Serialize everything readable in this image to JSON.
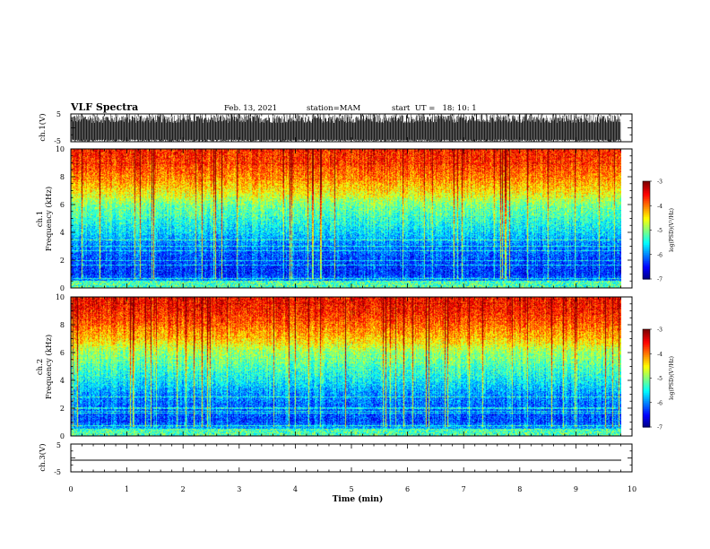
{
  "header": {
    "title": "VLF Spectra",
    "date": "Feb. 13, 2021",
    "station": "station=MAM",
    "start": "start  UT =   18: 10: 1"
  },
  "chart_data": [
    {
      "type": "line",
      "panel": "ch1-waveform",
      "ylabel": "ch.1(V)",
      "ylim": [
        -5,
        5
      ],
      "y_ticks": [
        5,
        -5
      ],
      "xlim": [
        0,
        10
      ],
      "data_extent_x": [
        0,
        9.8
      ],
      "description_values": {
        "baseline": -5,
        "burst_count_per_min": 30,
        "burst_peak": 5
      }
    },
    {
      "type": "heatmap",
      "panel": "ch1-spectrogram",
      "ylabel": "ch.1\nFrequency (kHz)",
      "ylim": [
        0,
        10
      ],
      "y_ticks": [
        0,
        2,
        4,
        6,
        8,
        10
      ],
      "xlim": [
        0,
        10
      ],
      "data_extent_x": [
        0,
        9.8
      ],
      "colorbar": {
        "label": "log(PSD)(V²/Hz)",
        "ticks": [
          -3,
          -4,
          -5,
          -6,
          -7
        ],
        "range": [
          -7,
          -3
        ]
      },
      "spectral_profile": {
        "freq_khz": [
          0,
          1,
          2,
          3,
          4,
          5,
          6,
          7,
          8,
          9,
          10
        ],
        "log_psd": [
          -5.6,
          -6.3,
          -6.2,
          -6.0,
          -5.6,
          -5.3,
          -5.0,
          -4.4,
          -4.0,
          -3.7,
          -3.6
        ]
      }
    },
    {
      "type": "heatmap",
      "panel": "ch2-spectrogram",
      "ylabel": "ch.2\nFrequency (kHz)",
      "ylim": [
        0,
        10
      ],
      "y_ticks": [
        0,
        2,
        4,
        6,
        8,
        10
      ],
      "xlim": [
        0,
        10
      ],
      "data_extent_x": [
        0,
        9.8
      ],
      "colorbar": {
        "label": "log(PSD)(V²/Hz)",
        "ticks": [
          -3,
          -4,
          -5,
          -6,
          -7
        ],
        "range": [
          -7,
          -3
        ]
      },
      "spectral_profile": {
        "freq_khz": [
          0,
          1,
          2,
          3,
          4,
          5,
          6,
          7,
          8,
          9,
          10
        ],
        "log_psd": [
          -5.4,
          -6.2,
          -6.1,
          -5.9,
          -5.5,
          -5.2,
          -4.9,
          -4.3,
          -3.9,
          -3.6,
          -3.5
        ]
      }
    },
    {
      "type": "line",
      "panel": "ch3-waveform",
      "ylabel": "ch.3(V)",
      "ylim": [
        -5,
        5
      ],
      "y_ticks": [
        5,
        -5
      ],
      "xlim": [
        0,
        10
      ],
      "x_ticks": [
        0,
        1,
        2,
        3,
        4,
        5,
        6,
        7,
        8,
        9,
        10
      ],
      "xlabel": "Time (min)",
      "constant_value": 0,
      "data_extent_x": [
        0,
        9.8
      ]
    }
  ]
}
